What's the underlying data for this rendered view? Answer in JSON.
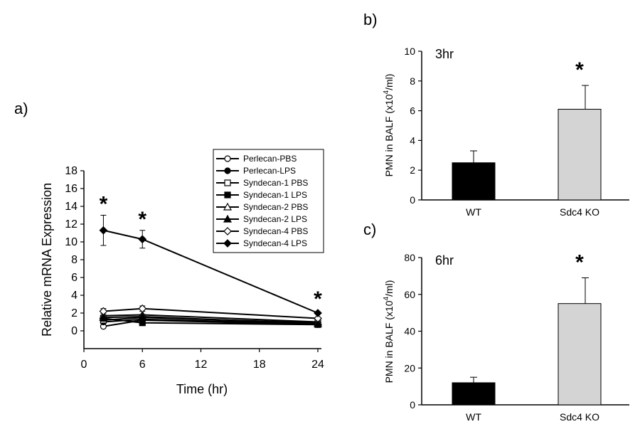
{
  "chart_data": [
    {
      "panel": "a)",
      "type": "line",
      "xlabel": "Time (hr)",
      "ylabel": "Relative mRNA Expression",
      "xlim": [
        0,
        24
      ],
      "ylim": [
        -2,
        18
      ],
      "xticks": [
        "0",
        "6",
        "12",
        "18",
        "24"
      ],
      "yticks": [
        "0",
        "2",
        "4",
        "6",
        "8",
        "10",
        "12",
        "14",
        "16",
        "18"
      ],
      "x": [
        2,
        6,
        24
      ],
      "series": [
        {
          "name": "Perlecan-PBS",
          "marker": "circle-open",
          "values": [
            0.5,
            1.2,
            0.7
          ],
          "errors": [
            0,
            0,
            0
          ]
        },
        {
          "name": "Perlecan-LPS",
          "marker": "circle-filled",
          "values": [
            1.0,
            1.3,
            0.8
          ],
          "errors": [
            0,
            0,
            0
          ]
        },
        {
          "name": "Syndecan-1 PBS",
          "marker": "square-open",
          "values": [
            1.2,
            1.5,
            0.9
          ],
          "errors": [
            0,
            0,
            0
          ]
        },
        {
          "name": "Syndecan-1 LPS",
          "marker": "square-filled",
          "values": [
            1.4,
            0.9,
            0.7
          ],
          "errors": [
            0,
            0,
            0
          ]
        },
        {
          "name": "Syndecan-2 PBS",
          "marker": "triangle-open",
          "values": [
            1.7,
            1.8,
            1.0
          ],
          "errors": [
            0,
            0,
            0
          ]
        },
        {
          "name": "Syndecan-2 LPS",
          "marker": "triangle-filled",
          "values": [
            1.5,
            1.6,
            0.8
          ],
          "errors": [
            0,
            0,
            0
          ]
        },
        {
          "name": "Syndecan-4 PBS",
          "marker": "diamond-open",
          "values": [
            2.2,
            2.5,
            1.4
          ],
          "errors": [
            0.3,
            0.3,
            0
          ]
        },
        {
          "name": "Syndecan-4 LPS",
          "marker": "diamond-filled",
          "values": [
            11.3,
            10.3,
            2.0
          ],
          "errors": [
            1.7,
            1.0,
            0
          ]
        }
      ],
      "annotations": [
        {
          "x": 2,
          "text": "*"
        },
        {
          "x": 6,
          "text": "*"
        },
        {
          "x": 24,
          "text": "*"
        }
      ]
    },
    {
      "panel": "b)",
      "type": "bar",
      "title": "3hr",
      "ylabel": "PMN in BALF (x10",
      "ylabel_sup": "4",
      "ylabel_end": "/ml)",
      "categories": [
        "WT",
        "Sdc4 KO"
      ],
      "values": [
        2.5,
        6.1
      ],
      "errors": [
        0.8,
        1.6
      ],
      "colors": [
        "#000000",
        "#d4d4d4"
      ],
      "ylim": [
        0,
        10
      ],
      "yticks": [
        "0",
        "2",
        "4",
        "6",
        "8",
        "10"
      ],
      "annotation": "*"
    },
    {
      "panel": "c)",
      "type": "bar",
      "title": "6hr",
      "ylabel": "PMN in BALF (x10",
      "ylabel_sup": "4",
      "ylabel_end": "/ml)",
      "categories": [
        "WT",
        "Sdc4 KO"
      ],
      "values": [
        12,
        55
      ],
      "errors": [
        3,
        14
      ],
      "colors": [
        "#000000",
        "#d4d4d4"
      ],
      "ylim": [
        0,
        80
      ],
      "yticks": [
        "0",
        "20",
        "40",
        "60",
        "80"
      ],
      "annotation": "*"
    }
  ]
}
